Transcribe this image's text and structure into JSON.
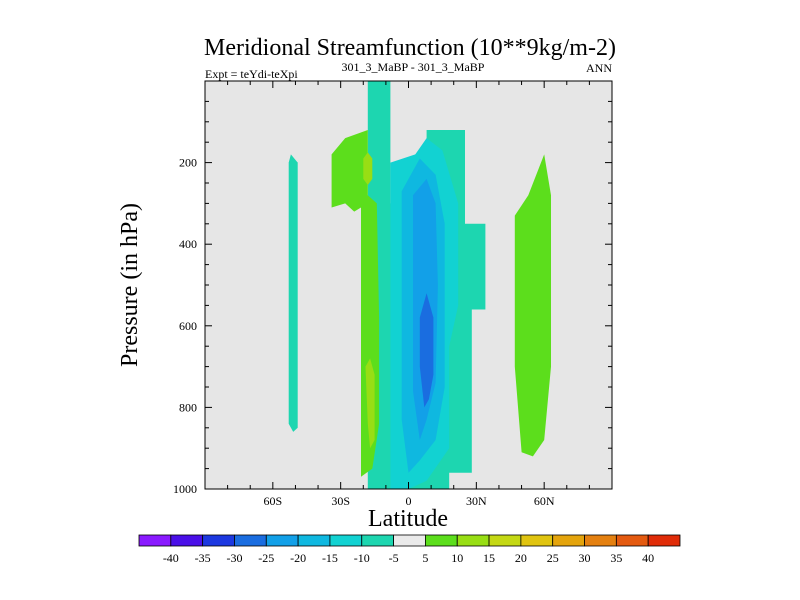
{
  "chart_data": {
    "type": "contour",
    "title": "Meridional Streamfunction (10**9kg/m-2)",
    "subtitle_left": "Expt = teYdi-teXpi",
    "subtitle_center": "301_3_MaBP - 301_3_MaBP",
    "subtitle_right": "ANN",
    "xlabel": "Latitude",
    "ylabel": "Pressure (in hPa)",
    "x_ticks": [
      {
        "value": -60,
        "label": "60S"
      },
      {
        "value": -30,
        "label": "30S"
      },
      {
        "value": 0,
        "label": "0"
      },
      {
        "value": 30,
        "label": "30N"
      },
      {
        "value": 60,
        "label": "60N"
      }
    ],
    "y_ticks": [
      {
        "value": 200,
        "label": "200"
      },
      {
        "value": 400,
        "label": "400"
      },
      {
        "value": 600,
        "label": "600"
      },
      {
        "value": 800,
        "label": "800"
      },
      {
        "value": 1000,
        "label": "1000"
      }
    ],
    "xlim": [
      -90,
      90
    ],
    "ylim": [
      1000,
      0
    ],
    "background_color": "#e6e6e6",
    "colorbar": {
      "labels": [
        "-40",
        "-35",
        "-30",
        "-25",
        "-20",
        "-15",
        "-10",
        "-5",
        "5",
        "10",
        "15",
        "20",
        "25",
        "30",
        "35",
        "40"
      ],
      "colors": [
        "#8a1aff",
        "#4a0fe8",
        "#1c38e0",
        "#1a6de0",
        "#12a0e8",
        "#0fb8e0",
        "#12d2d2",
        "#1dd6b0",
        "#eaeaea",
        "#5cde1c",
        "#98de14",
        "#c4d814",
        "#e0c410",
        "#e4a40c",
        "#e48010",
        "#e45a10",
        "#e02c08"
      ]
    },
    "regions": [
      {
        "value": -7,
        "color": "#1dd6b0",
        "poly": [
          [
            -18,
            1000
          ],
          [
            -18,
            0
          ],
          [
            -8,
            0
          ],
          [
            -8,
            300
          ],
          [
            3,
            300
          ],
          [
            3,
            180
          ],
          [
            8,
            180
          ],
          [
            8,
            120
          ],
          [
            25,
            120
          ],
          [
            25,
            350
          ],
          [
            34,
            350
          ],
          [
            34,
            560
          ],
          [
            28,
            560
          ],
          [
            28,
            960
          ],
          [
            18,
            960
          ],
          [
            18,
            1000
          ]
        ]
      },
      {
        "value": -7,
        "color": "#1dd6b0",
        "poly": [
          [
            -53,
            200
          ],
          [
            -52,
            180
          ],
          [
            -49,
            200
          ],
          [
            -49,
            850
          ],
          [
            -51,
            860
          ],
          [
            -53,
            840
          ]
        ]
      },
      {
        "value": -12,
        "color": "#12d2d2",
        "poly": [
          [
            -8,
            1000
          ],
          [
            -8,
            200
          ],
          [
            3,
            180
          ],
          [
            8,
            140
          ],
          [
            15,
            170
          ],
          [
            22,
            300
          ],
          [
            22,
            550
          ],
          [
            18,
            650
          ],
          [
            18,
            900
          ],
          [
            8,
            980
          ],
          [
            0,
            1000
          ]
        ]
      },
      {
        "value": -17,
        "color": "#0fb8e0",
        "poly": [
          [
            0,
            960
          ],
          [
            -3,
            830
          ],
          [
            -3,
            270
          ],
          [
            5,
            190
          ],
          [
            12,
            230
          ],
          [
            16,
            350
          ],
          [
            16,
            750
          ],
          [
            12,
            880
          ],
          [
            5,
            930
          ]
        ]
      },
      {
        "value": -22,
        "color": "#12a0e8",
        "poly": [
          [
            5,
            880
          ],
          [
            2,
            760
          ],
          [
            2,
            280
          ],
          [
            8,
            240
          ],
          [
            12,
            300
          ],
          [
            13,
            500
          ],
          [
            12,
            740
          ],
          [
            8,
            830
          ]
        ]
      },
      {
        "value": -27,
        "color": "#1a6de0",
        "poly": [
          [
            7,
            800
          ],
          [
            5,
            700
          ],
          [
            5,
            580
          ],
          [
            8,
            520
          ],
          [
            11,
            580
          ],
          [
            11,
            720
          ],
          [
            9,
            780
          ]
        ]
      },
      {
        "value": 8,
        "color": "#5cde1c",
        "poly": [
          [
            -34,
            310
          ],
          [
            -34,
            180
          ],
          [
            -28,
            140
          ],
          [
            -18,
            120
          ],
          [
            -18,
            300
          ],
          [
            -24,
            320
          ],
          [
            -28,
            300
          ]
        ]
      },
      {
        "value": 8,
        "color": "#5cde1c",
        "poly": [
          [
            -21,
            970
          ],
          [
            -21,
            300
          ],
          [
            -18,
            280
          ],
          [
            -14,
            300
          ],
          [
            -13,
            580
          ],
          [
            -13,
            840
          ],
          [
            -16,
            950
          ]
        ]
      },
      {
        "value": 8,
        "color": "#5cde1c",
        "poly": [
          [
            50,
            910
          ],
          [
            47,
            700
          ],
          [
            47,
            330
          ],
          [
            53,
            280
          ],
          [
            60,
            180
          ],
          [
            63,
            280
          ],
          [
            63,
            700
          ],
          [
            60,
            880
          ],
          [
            55,
            920
          ]
        ]
      },
      {
        "value": 12,
        "color": "#98de14",
        "poly": [
          [
            -18,
            840
          ],
          [
            -19,
            700
          ],
          [
            -17,
            680
          ],
          [
            -15,
            720
          ],
          [
            -15,
            880
          ],
          [
            -17,
            900
          ]
        ]
      },
      {
        "value": 12,
        "color": "#98de14",
        "poly": [
          [
            -20,
            240
          ],
          [
            -20,
            190
          ],
          [
            -18,
            175
          ],
          [
            -16,
            190
          ],
          [
            -16,
            240
          ],
          [
            -18,
            255
          ]
        ]
      }
    ]
  }
}
